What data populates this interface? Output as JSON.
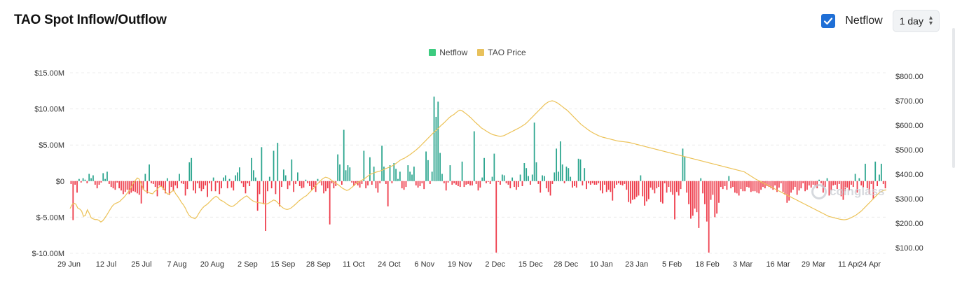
{
  "header": {
    "title": "TAO Spot Inflow/Outflow",
    "netflow_checkbox_label": "Netflow",
    "interval_selected": "1 day"
  },
  "watermark": "coinglass",
  "colors": {
    "positive": "#2ba58e",
    "negative": "#ee3b4a",
    "price": "#ecc257",
    "legend_netflow": "#3ccb7f",
    "legend_price": "#e8c15c",
    "checkbox": "#1f6fd6"
  },
  "chart_data": {
    "type": "bar",
    "legend": [
      "Netflow",
      "TAO Price"
    ],
    "x_tick_labels": [
      "29 Jun",
      "12 Jul",
      "25 Jul",
      "7 Aug",
      "20 Aug",
      "2 Sep",
      "15 Sep",
      "28 Sep",
      "11 Oct",
      "24 Oct",
      "6 Nov",
      "19 Nov",
      "2 Dec",
      "15 Dec",
      "28 Dec",
      "10 Jan",
      "23 Jan",
      "5 Feb",
      "18 Feb",
      "3 Mar",
      "16 Mar",
      "29 Mar",
      "11 Apr",
      "24 Apr"
    ],
    "y_left": {
      "label": "Netflow",
      "ticks": [
        "$15.00M",
        "$10.00M",
        "$5.00M",
        "$0",
        "$-5.00M",
        "$-10.00M"
      ],
      "tick_values": [
        15,
        10,
        5,
        0,
        -5,
        -10
      ],
      "range": [
        -10,
        15
      ]
    },
    "y_right": {
      "label": "TAO Price",
      "ticks": [
        "$800.00",
        "$700.00",
        "$600.00",
        "$500.00",
        "$400.00",
        "$300.00",
        "$200.00",
        "$100.00"
      ],
      "tick_values": [
        800,
        700,
        600,
        500,
        400,
        300,
        200,
        100
      ],
      "range": [
        90,
        810
      ]
    },
    "grid": "horizontal dashed",
    "legend_position": "top-center",
    "series": [
      {
        "name": "Netflow",
        "unit": "$M",
        "values": [
          -0.4,
          -5.4,
          -0.5,
          -1.6,
          0.3,
          -0.2,
          0.4,
          0.2,
          -0.3,
          1.0,
          0.4,
          0.8,
          -0.5,
          -1.0,
          -0.5,
          -0.2,
          1.1,
          0.3,
          1.3,
          -0.4,
          -0.8,
          -1.0,
          -1.2,
          -0.2,
          -1.0,
          -1.3,
          -1.8,
          -1.5,
          -1.2,
          -1.8,
          -1.6,
          -1.4,
          -1.5,
          -1.7,
          -1.9,
          -3.1,
          -1.2,
          1.0,
          -1.7,
          2.3,
          -0.3,
          -0.4,
          -0.8,
          -2.1,
          -0.6,
          -0.8,
          -1.2,
          -1.7,
          0.4,
          -1.9,
          -0.8,
          -1.4,
          -0.6,
          -1.0,
          1.0,
          -0.3,
          -0.4,
          -2.0,
          -1.1,
          2.6,
          3.2,
          -1.3,
          -1.7,
          -0.3,
          -1.0,
          -1.4,
          -1.1,
          -0.6,
          -2.2,
          -0.3,
          -1.4,
          0.5,
          -1.4,
          -0.2,
          -1.8,
          -1.0,
          0.5,
          0.8,
          -1.0,
          0.3,
          -0.9,
          -1.3,
          0.8,
          1.2,
          1.9,
          -0.3,
          -0.8,
          -1.7,
          -0.3,
          -0.7,
          3.2,
          1.5,
          0.5,
          -4.1,
          -1.8,
          4.7,
          -3.2,
          -6.9,
          -1.4,
          0.6,
          -1.0,
          4.2,
          -1.8,
          5.3,
          -3.5,
          -0.8,
          1.6,
          0.8,
          -1.1,
          -0.6,
          3.0,
          -1.5,
          -0.4,
          1.2,
          -0.7,
          -1.0,
          -0.9,
          0.2,
          -0.3,
          -0.7,
          -1.2,
          -0.8,
          -1.5,
          0.3,
          -0.2,
          -0.6,
          -1.7,
          -1.4,
          -1.0,
          -6.0,
          -0.3,
          -1.0,
          -0.7,
          3.7,
          2.3,
          -0.5,
          7.1,
          1.5,
          2.2,
          1.9,
          -0.2,
          -0.7,
          -0.3,
          -0.6,
          -0.9,
          -0.4,
          4.2,
          -1.0,
          -0.6,
          3.3,
          -0.5,
          2.0,
          -1.0,
          -1.6,
          -0.3,
          4.9,
          2.0,
          -0.4,
          -3.5,
          2.2,
          -0.3,
          2.5,
          1.7,
          0.3,
          1.3,
          -1.0,
          -1.2,
          -0.8,
          2.2,
          1.3,
          0.9,
          2.0,
          -0.6,
          -0.9,
          -0.7,
          -0.3,
          -1.1,
          4.1,
          2.9,
          -0.4,
          1.3,
          11.7,
          8.9,
          11.0,
          3.9,
          1.0,
          -0.3,
          -1.3,
          -0.2,
          2.2,
          -0.5,
          -0.3,
          -0.5,
          -0.7,
          -0.8,
          2.7,
          -0.8,
          -0.5,
          -0.4,
          -0.6,
          -0.6,
          6.9,
          -0.4,
          -1.3,
          -0.9,
          0.5,
          3.2,
          -0.3,
          -0.1,
          -0.4,
          0.6,
          3.8,
          -9.9,
          -0.1,
          -0.5,
          0.9,
          0.8,
          -0.3,
          -0.5,
          -1.0,
          0.5,
          -0.8,
          -1.2,
          -0.8,
          0.9,
          -0.7,
          2.5,
          1.8,
          0.7,
          -0.5,
          0.9,
          8.1,
          2.6,
          -0.4,
          -1.6,
          0.8,
          0.7,
          -1.0,
          -1.5,
          -2.0,
          -0.4,
          1.2,
          4.5,
          1.3,
          5.5,
          2.3,
          -0.3,
          2.0,
          1.8,
          0.6,
          -0.9,
          -0.7,
          -0.9,
          3.1,
          3.0,
          -0.6,
          1.8,
          -1.1,
          -0.3,
          -0.5,
          -0.3,
          -0.5,
          -0.5,
          -0.3,
          -1.3,
          -1.7,
          -0.5,
          -1.5,
          -1.2,
          -1.5,
          -2.7,
          -1.0,
          -0.5,
          -0.3,
          -0.5,
          -0.6,
          -0.4,
          -1.2,
          -2.9,
          -3.1,
          -2.6,
          -2.5,
          -2.2,
          -2.0,
          0.8,
          -2.1,
          -3.4,
          -2.8,
          -2.5,
          -0.9,
          -1.2,
          -1.7,
          -1.0,
          -0.8,
          -2.9,
          -3.1,
          -0.3,
          -1.6,
          -0.8,
          -1.5,
          -1.9,
          -5.3,
          -1.5,
          -2.0,
          -1.1,
          4.5,
          3.4,
          -1.6,
          -3.2,
          -5.2,
          -4.8,
          -3.8,
          -4.3,
          -6.5,
          0.4,
          -1.7,
          -3.2,
          -5.6,
          -9.9,
          -2.6,
          -1.9,
          -5.0,
          -4.5,
          -3.0,
          -0.8,
          -1.1,
          -0.7,
          -1.2,
          0.7,
          -1.0,
          -0.8,
          -1.6,
          -1.7,
          -2.0,
          -1.1,
          -1.4,
          -1.4,
          -0.8,
          -0.9,
          -1.5,
          -1.4,
          -1.4,
          -1.6,
          -1.7,
          -1.2,
          -0.8,
          -1.0,
          -0.7,
          -0.8,
          -1.0,
          -1.2,
          -0.6,
          -1.5,
          -0.9,
          -0.3,
          -1.5,
          -1.9,
          -3.0,
          -2.7,
          -1.6,
          -1.2,
          -0.8,
          -1.9,
          -1.3,
          -1.0,
          -0.3,
          -1.4,
          -1.2,
          -0.6,
          -0.9,
          -0.5,
          -0.6,
          -1.0,
          0.2,
          -0.3,
          -1.6,
          -0.8,
          0.4,
          -2.0,
          -1.3,
          -0.6,
          -0.5,
          -1.1,
          -0.4,
          -2.1,
          -2.6,
          -1.4,
          -0.9,
          -1.3,
          -0.5,
          -0.8,
          1.0,
          -1.6,
          0.4,
          -0.6,
          -0.9,
          2.4,
          -1.0,
          -1.8,
          -0.4,
          -2.5,
          2.7,
          -0.7,
          0.9,
          2.4,
          -0.4,
          -1.0
        ]
      },
      {
        "name": "TAO Price",
        "unit": "$",
        "values": [
          260,
          275,
          282,
          278,
          262,
          258,
          250,
          228,
          232,
          255,
          240,
          222,
          218,
          215,
          215,
          212,
          205,
          210,
          220,
          232,
          245,
          258,
          270,
          278,
          282,
          285,
          290,
          298,
          305,
          315,
          325,
          335,
          350,
          365,
          375,
          385,
          380,
          360,
          340,
          332,
          330,
          325,
          322,
          320,
          330,
          335,
          345,
          352,
          348,
          338,
          325,
          318,
          322,
          330,
          335,
          320,
          310,
          298,
          285,
          275,
          262,
          245,
          232,
          225,
          222,
          218,
          226,
          240,
          252,
          262,
          270,
          275,
          282,
          290,
          298,
          305,
          310,
          305,
          296,
          292,
          288,
          282,
          276,
          272,
          268,
          270,
          276,
          282,
          290,
          296,
          302,
          308,
          312,
          305,
          298,
          292,
          288,
          286,
          284,
          283,
          282,
          280,
          278,
          280,
          285,
          290,
          295,
          292,
          285,
          276,
          268,
          262,
          258,
          256,
          258,
          262,
          268,
          275,
          282,
          290,
          296,
          302,
          308,
          312,
          320,
          328,
          336,
          344,
          355,
          362,
          370,
          378,
          384,
          388,
          386,
          382,
          376,
          370,
          365,
          360,
          355,
          348,
          342,
          338,
          334,
          336,
          342,
          348,
          356,
          362,
          368,
          372,
          376,
          380,
          386,
          392,
          398,
          402,
          405,
          408,
          410,
          412,
          415,
          418,
          422,
          425,
          428,
          432,
          435,
          440,
          446,
          452,
          458,
          462,
          465,
          470,
          475,
          480,
          486,
          492,
          498,
          505,
          512,
          520,
          528,
          536,
          544,
          552,
          560,
          568,
          575,
          582,
          590,
          598,
          605,
          612,
          620,
          628,
          635,
          640,
          645,
          652,
          658,
          662,
          660,
          654,
          648,
          642,
          635,
          628,
          620,
          612,
          605,
          598,
          590,
          585,
          580,
          575,
          570,
          566,
          562,
          560,
          558,
          556,
          555,
          556,
          558,
          562,
          566,
          570,
          574,
          578,
          582,
          586,
          590,
          595,
          600,
          605,
          612,
          620,
          628,
          636,
          644,
          652,
          660,
          668,
          676,
          684,
          690,
          695,
          698,
          700,
          698,
          694,
          690,
          684,
          678,
          672,
          666,
          660,
          652,
          644,
          636,
          628,
          620,
          612,
          604,
          598,
          592,
          586,
          580,
          575,
          570,
          566,
          562,
          558,
          555,
          552,
          550,
          548,
          546,
          544,
          542,
          540,
          538,
          536,
          535,
          534,
          533,
          532,
          531,
          530,
          528,
          526,
          524,
          522,
          520,
          518,
          516,
          514,
          512,
          510,
          508,
          506,
          504,
          502,
          500,
          498,
          496,
          494,
          492,
          490,
          488,
          486,
          484,
          482,
          480,
          478,
          476,
          474,
          472,
          470,
          468,
          466,
          464,
          462,
          460,
          458,
          456,
          454,
          452,
          450,
          448,
          446,
          444,
          442,
          440,
          438,
          436,
          434,
          432,
          430,
          428,
          426,
          424,
          422,
          420,
          418,
          416,
          414,
          412,
          410,
          405,
          400,
          395,
          390,
          385,
          380,
          376,
          372,
          368,
          364,
          360,
          356,
          352,
          348,
          344,
          340,
          336,
          332,
          328,
          324,
          320,
          316,
          312,
          308,
          304,
          300,
          296,
          292,
          288,
          284,
          280,
          276,
          272,
          268,
          264,
          260,
          256,
          252,
          248,
          244,
          240,
          236,
          232,
          228,
          226,
          224,
          222,
          220,
          218,
          216,
          215,
          214,
          215,
          217,
          220,
          224,
          228,
          232,
          238,
          244,
          250,
          258,
          266,
          274,
          282,
          290,
          298,
          306,
          314,
          322,
          328,
          332,
          335,
          336
        ]
      }
    ]
  }
}
